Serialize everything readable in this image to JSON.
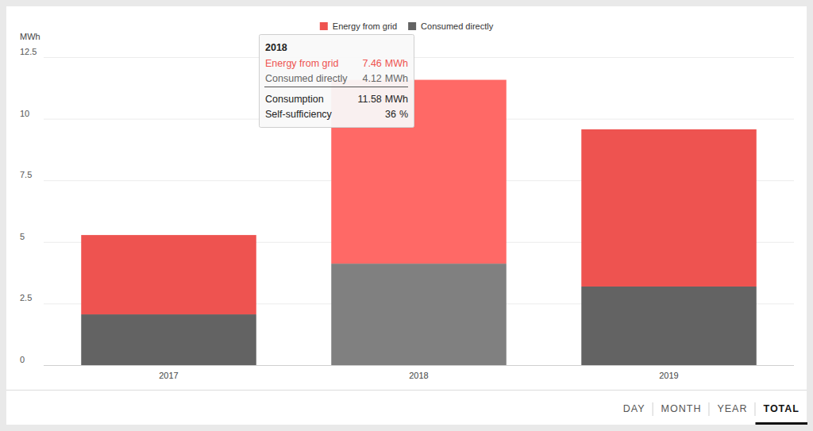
{
  "chart_data": {
    "type": "bar",
    "stacked": true,
    "y_label": "MWh",
    "categories": [
      "2017",
      "2018",
      "2019"
    ],
    "series": [
      {
        "name": "Energy from grid",
        "color": "#ee5350",
        "colors": [
          "#ee5350",
          "#ff6966",
          "#ee5350"
        ],
        "values": [
          3.22,
          7.46,
          6.38
        ]
      },
      {
        "name": "Consumed directly",
        "color": "#636363",
        "colors": [
          "#636363",
          "#808080",
          "#636363"
        ],
        "values": [
          2.06,
          4.12,
          3.19
        ]
      }
    ],
    "ylim": [
      0,
      12.5
    ],
    "yticks": [
      0,
      2.5,
      5,
      7.5,
      10,
      12.5
    ],
    "grid": true,
    "legend": "top",
    "tooltip": {
      "title": "2018",
      "rows": [
        {
          "label": "Energy from grid",
          "value": 7.46,
          "unit": "MWh"
        },
        {
          "label": "Consumed directly",
          "value": 4.12,
          "unit": "MWh"
        },
        {
          "label": "Consumption",
          "value": 11.58,
          "unit": "MWh"
        },
        {
          "label": "Self-sufficiency",
          "value": 36,
          "unit": "%"
        }
      ]
    }
  },
  "controls": {
    "options": [
      "DAY",
      "MONTH",
      "YEAR",
      "TOTAL"
    ],
    "selected": "TOTAL"
  }
}
